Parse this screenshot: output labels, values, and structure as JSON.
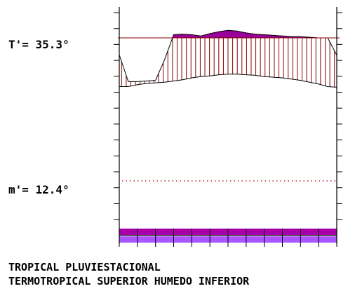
{
  "chart_data": {
    "type": "area",
    "title": "",
    "annotations": [
      {
        "text": "T'= 35.3°",
        "y": 35.3
      },
      {
        "text": "m'= 12.4°",
        "y": 12.4
      }
    ],
    "upper_line": {
      "x": [
        0,
        0.5,
        1,
        1.5,
        2,
        2.5,
        3,
        3.5,
        4,
        4.5,
        5,
        5.5,
        6,
        6.5,
        7,
        7.5,
        8,
        8.5,
        9,
        9.5,
        10,
        10.5,
        11,
        11.5,
        12
      ],
      "values": [
        32.6,
        28.3,
        28.3,
        28.4,
        28.5,
        31.8,
        35.8,
        35.9,
        35.8,
        35.6,
        36.0,
        36.3,
        36.5,
        36.4,
        36.1,
        35.9,
        35.8,
        35.7,
        35.6,
        35.5,
        35.5,
        35.4,
        35.3,
        35.3,
        32.5
      ]
    },
    "lower_line": {
      "x": [
        0,
        0.5,
        1,
        1.5,
        2,
        2.5,
        3,
        3.5,
        4,
        4.5,
        5,
        5.5,
        6,
        6.5,
        7,
        7.5,
        8,
        8.5,
        9,
        9.5,
        10,
        10.5,
        11,
        11.5,
        12
      ],
      "values": [
        27.5,
        27.5,
        27.8,
        28.0,
        28.1,
        28.2,
        28.4,
        28.6,
        28.9,
        29.1,
        29.2,
        29.4,
        29.5,
        29.5,
        29.4,
        29.3,
        29.1,
        29.0,
        28.9,
        28.7,
        28.5,
        28.2,
        27.9,
        27.5,
        27.4
      ]
    },
    "reference_lines": [
      35.3,
      12.4
    ],
    "xlim": [
      0,
      12
    ],
    "ylim": [
      5,
      41
    ],
    "bottom_bands": [
      {
        "color": "#aa00aa"
      },
      {
        "color": "#aa55ff"
      }
    ],
    "colors": {
      "hatch": "#880000",
      "excess_fill": "#990099",
      "dotted": "#aa0000",
      "axis": "#000000"
    }
  },
  "captions": {
    "line1": "TROPICAL PLUVIESTACIONAL",
    "line2": "TERMOTROPICAL SUPERIOR HUMEDO INFERIOR"
  }
}
